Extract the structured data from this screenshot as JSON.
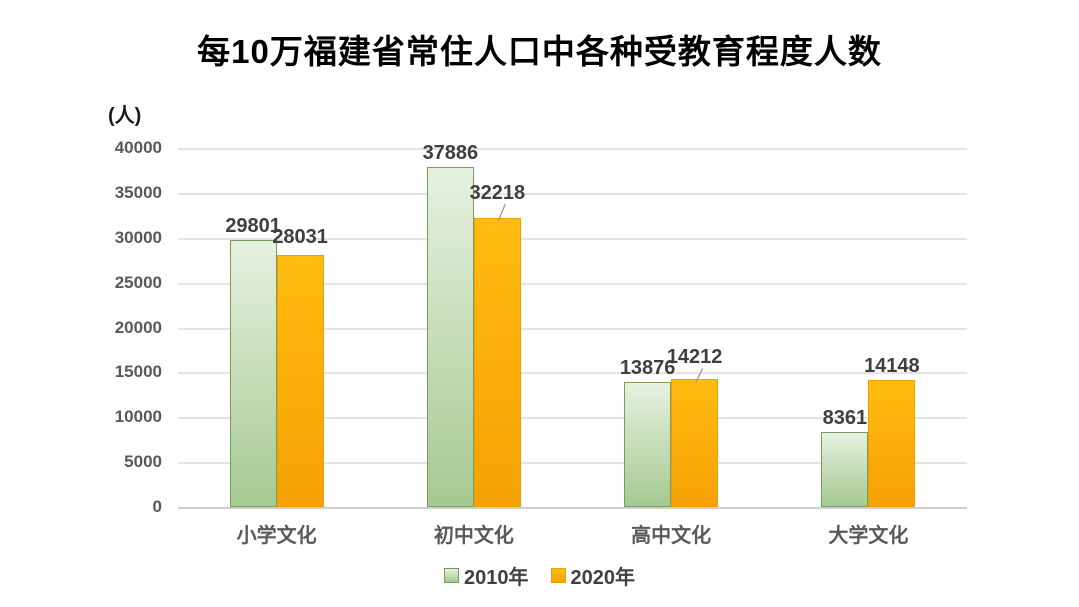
{
  "chart_data": {
    "type": "bar",
    "title": "每10万福建省常住人口中各种受教育程度人数",
    "y_axis_unit": "(人)",
    "categories": [
      "小学文化",
      "初中文化",
      "高中文化",
      "大学文化"
    ],
    "series": [
      {
        "name": "2010年",
        "values": [
          29801,
          37886,
          13876,
          8361
        ],
        "fill_top": "#e7f1e0",
        "fill_bottom": "#a6c992",
        "border": "#789c5b",
        "label_raise": [
          4,
          4,
          4,
          4
        ],
        "leader": [
          false,
          false,
          false,
          false
        ]
      },
      {
        "name": "2020年",
        "values": [
          28031,
          32218,
          14212,
          14148
        ],
        "fill_top": "#ffbc0f",
        "fill_bottom": "#f6a105",
        "border": "#f09e00",
        "label_raise": [
          8,
          15,
          12,
          4
        ],
        "leader": [
          false,
          true,
          true,
          false
        ]
      }
    ],
    "ylim": [
      0,
      40000
    ],
    "yticks": [
      0,
      5000,
      10000,
      15000,
      20000,
      25000,
      30000,
      35000,
      40000
    ],
    "grid": true,
    "legend_position": "bottom",
    "value_label_color": "#3f3f3f",
    "axis_label_color": "#595959",
    "gridline_color": "#e4e4e4",
    "leader_line_color": "#9b9b9b"
  }
}
